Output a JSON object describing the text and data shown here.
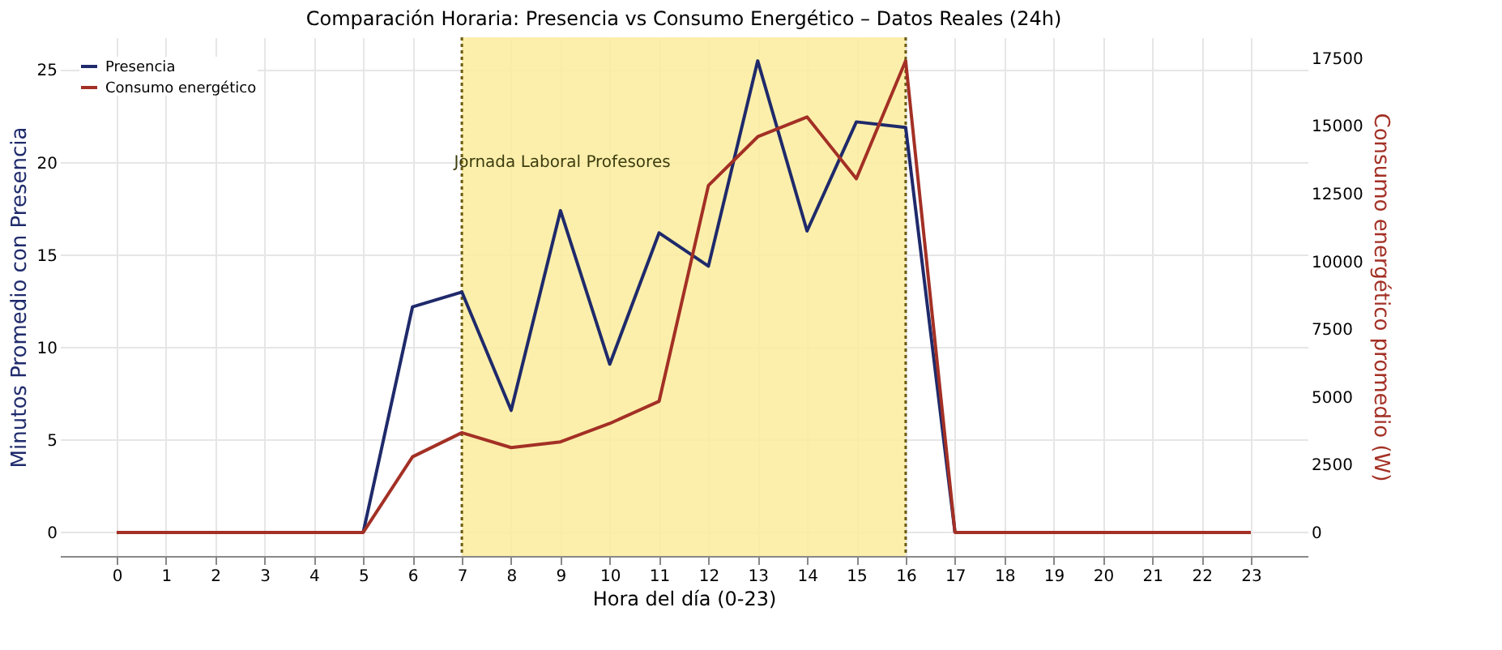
{
  "chart_data": {
    "type": "line",
    "title": "Comparación Horaria: Presencia vs Consumo Energético – Datos Reales (24h)",
    "xlabel": "Hora del día (0-23)",
    "ylabel": "Minutos Promedio con Presencia",
    "y2label": "Consumo energético promedio (W)",
    "x": [
      0,
      1,
      2,
      3,
      4,
      5,
      6,
      7,
      8,
      9,
      10,
      11,
      12,
      13,
      14,
      15,
      16,
      17,
      18,
      19,
      20,
      21,
      22,
      23
    ],
    "series": [
      {
        "name": "Presencia",
        "color": "#1f2a6b",
        "values": [
          null,
          null,
          null,
          null,
          null,
          0,
          12.2,
          13.0,
          6.6,
          17.4,
          9.1,
          16.2,
          14.4,
          25.5,
          16.3,
          22.2,
          21.9,
          0,
          null,
          null,
          null,
          null,
          null,
          null
        ]
      },
      {
        "name": "Consumo energético",
        "color": "#a33025",
        "axis": "y2",
        "values": [
          0,
          0,
          0,
          0,
          0,
          0,
          2790,
          3680,
          3130,
          3340,
          4020,
          4840,
          12800,
          14600,
          15330,
          13050,
          17400,
          0,
          0,
          0,
          0,
          0,
          0,
          0
        ]
      }
    ],
    "xlim": [
      -1.15,
      24.15
    ],
    "xticks": [
      0,
      1,
      2,
      3,
      4,
      5,
      6,
      7,
      8,
      9,
      10,
      11,
      12,
      13,
      14,
      15,
      16,
      17,
      18,
      19,
      20,
      21,
      22,
      23
    ],
    "ylim": [
      -1.275,
      26.775
    ],
    "yticks": [
      0,
      5,
      10,
      15,
      20,
      25
    ],
    "y2lim": [
      -870,
      18270
    ],
    "y2ticks": [
      0,
      2500,
      5000,
      7500,
      10000,
      12500,
      15000,
      17500
    ],
    "bands": [
      {
        "axis": "x",
        "from": 7,
        "to": 16,
        "label": "Jornada Laboral Profesores",
        "color": "#fbec9c"
      }
    ],
    "grid": true,
    "legend": "top left"
  }
}
